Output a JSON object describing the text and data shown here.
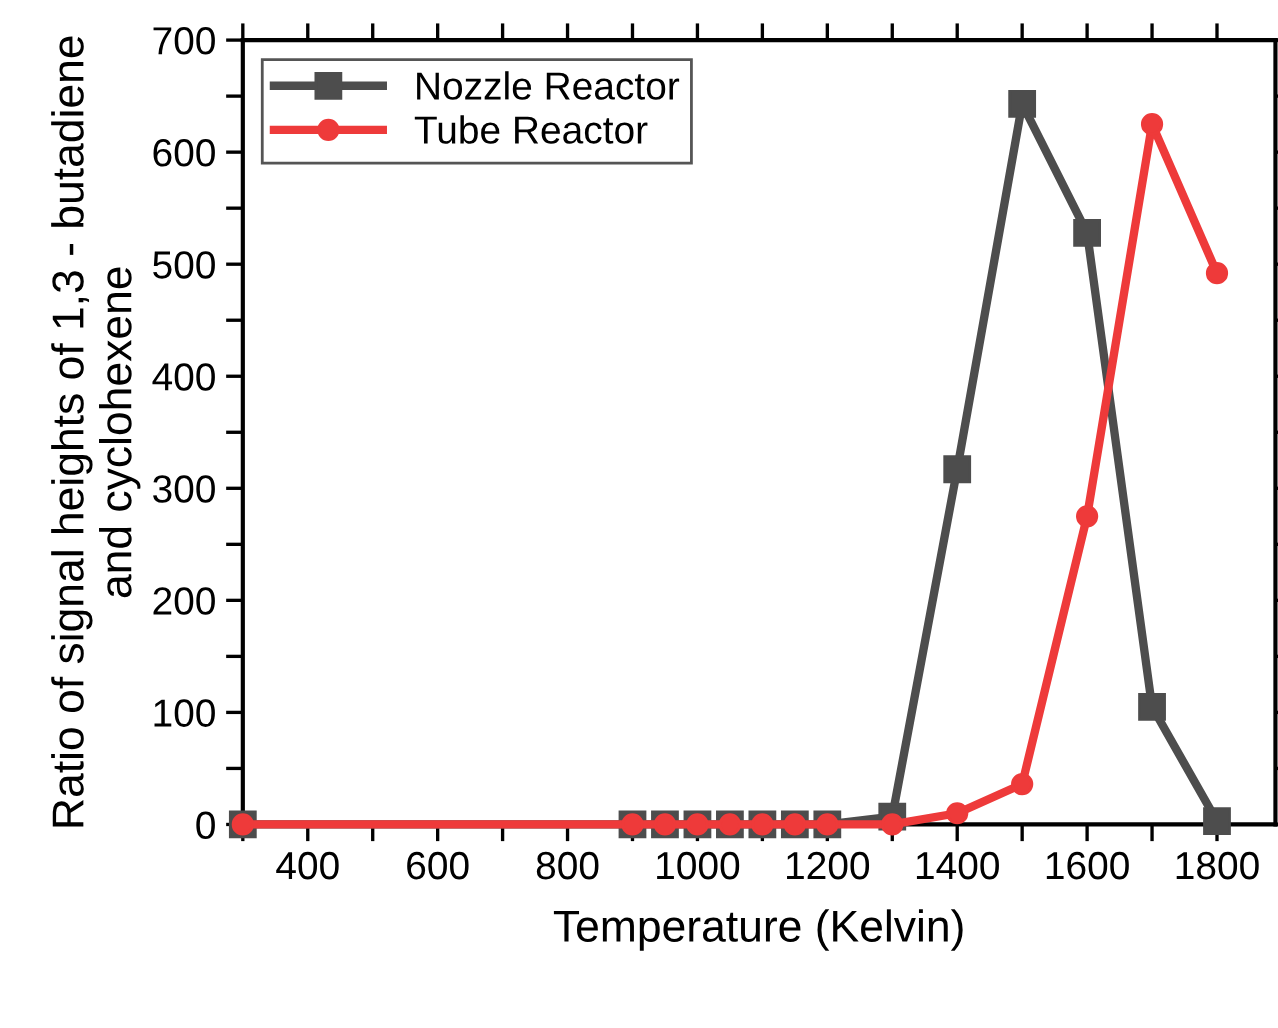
{
  "chart_data": {
    "type": "line",
    "xlabel": "Temperature (Kelvin)",
    "ylabel": "Ratio of signal heights of 1,3 - butadiene\nand cyclohexene",
    "series": [
      {
        "name": "Nozzle Reactor",
        "color": "#4d4d4d",
        "marker": "square",
        "x": [
          300,
          900,
          950,
          1000,
          1050,
          1100,
          1150,
          1200,
          1300,
          1400,
          1500,
          1600,
          1700,
          1800
        ],
        "values": [
          0,
          0,
          0,
          0,
          0,
          0,
          0,
          0,
          7,
          317,
          643,
          528,
          105,
          3
        ]
      },
      {
        "name": "Tube Reactor",
        "color": "#ee3a3a",
        "marker": "circle",
        "x": [
          300,
          900,
          950,
          1000,
          1050,
          1100,
          1150,
          1200,
          1300,
          1400,
          1500,
          1600,
          1700,
          1800
        ],
        "values": [
          0,
          0,
          0,
          0,
          0,
          0,
          0,
          0,
          0,
          10,
          36,
          275,
          625,
          492
        ]
      }
    ],
    "xlim": [
      300,
      1890
    ],
    "ylim": [
      0,
      700
    ],
    "xticks": [
      {
        "value": 300,
        "label": null
      },
      400,
      {
        "value": 500,
        "label": null
      },
      600,
      {
        "value": 700,
        "label": null
      },
      800,
      {
        "value": 900,
        "label": null
      },
      1000,
      {
        "value": 1100,
        "label": null
      },
      1200,
      {
        "value": 1300,
        "label": null
      },
      1400,
      {
        "value": 1500,
        "label": null
      },
      1600,
      {
        "value": 1700,
        "label": null
      },
      1800
    ],
    "yticks": [
      0,
      {
        "value": 50,
        "label": null
      },
      100,
      {
        "value": 150,
        "label": null
      },
      200,
      {
        "value": 250,
        "label": null
      },
      300,
      {
        "value": 350,
        "label": null
      },
      400,
      {
        "value": 450,
        "label": null
      },
      500,
      {
        "value": 550,
        "label": null
      },
      600,
      {
        "value": 650,
        "label": null
      },
      700
    ],
    "legend": "top left",
    "grid": false,
    "line_style": "solid"
  }
}
